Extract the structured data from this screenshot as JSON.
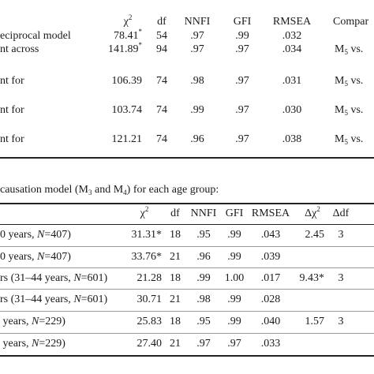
{
  "top_table": {
    "header": [
      [
        {
          "text": "χ"
        },
        {
          "sup": "2"
        }
      ],
      "df",
      "NNFI",
      "GFI",
      "RMSEA",
      "Compar"
    ],
    "rows": [
      [
        "eciprocal model",
        [
          {
            "text": "78.41"
          },
          {
            "sup": "*"
          }
        ],
        "54",
        ".97",
        ".99",
        ".032"
      ],
      [
        "nt across",
        [
          {
            "text": "141.89"
          },
          {
            "sup": "*"
          }
        ],
        "94",
        ".97",
        ".97",
        ".034",
        [
          {
            "text": "M"
          },
          {
            "sub": "5"
          },
          {
            "text": " vs."
          }
        ]
      ],
      [
        "nt for",
        "106.39",
        "74",
        ".98",
        ".97",
        ".031",
        [
          {
            "text": "M"
          },
          {
            "sub": "5"
          },
          {
            "text": " vs."
          }
        ]
      ],
      [
        "nt for",
        "103.74",
        "74",
        ".99",
        ".97",
        ".030",
        [
          {
            "text": "M"
          },
          {
            "sub": "5"
          },
          {
            "text": " vs."
          }
        ]
      ],
      [
        "nt for",
        "121.21",
        "74",
        ".96",
        ".97",
        ".038",
        [
          {
            "text": "M"
          },
          {
            "sub": "5"
          },
          {
            "text": " vs."
          }
        ]
      ]
    ]
  },
  "caption": [
    {
      "text": "causation model (M"
    },
    {
      "sub": "3"
    },
    {
      "text": " and M"
    },
    {
      "sub": "4"
    },
    {
      "text": ") for each age group:"
    }
  ],
  "bottom_table": {
    "header": [
      [
        {
          "text": "χ"
        },
        {
          "sup": "2"
        }
      ],
      "df",
      "NNFI",
      "GFI",
      "RMSEA",
      [
        {
          "text": "Δχ"
        },
        {
          "sup": "2"
        }
      ],
      "Δdf"
    ],
    "rows": [
      [
        [
          {
            "text": "0 years, "
          },
          {
            "i": "N"
          },
          {
            "text": "=407)"
          }
        ],
        "31.31*",
        "18",
        ".95",
        ".99",
        ".043",
        "2.45",
        "3"
      ],
      [
        [
          {
            "text": "0 years, "
          },
          {
            "i": "N"
          },
          {
            "text": "=407)"
          }
        ],
        "33.76*",
        "21",
        ".96",
        ".99",
        ".039"
      ],
      [
        [
          {
            "text": "rs (31–44 years, "
          },
          {
            "i": "N"
          },
          {
            "text": "=601)"
          }
        ],
        "21.28",
        "18",
        ".99",
        "1.00",
        ".017",
        "9.43*",
        "3"
      ],
      [
        [
          {
            "text": "rs (31–44 years, "
          },
          {
            "i": "N"
          },
          {
            "text": "=601)"
          }
        ],
        "30.71",
        "21",
        ".98",
        ".99",
        ".028"
      ],
      [
        [
          {
            "text": " years, "
          },
          {
            "i": "N"
          },
          {
            "text": "=229)"
          }
        ],
        "25.83",
        "18",
        ".95",
        ".99",
        ".040",
        "1.57",
        "3"
      ],
      [
        [
          {
            "text": " years, "
          },
          {
            "i": "N"
          },
          {
            "text": "=229)"
          }
        ],
        "27.40",
        "21",
        ".97",
        ".97",
        ".033"
      ]
    ]
  }
}
